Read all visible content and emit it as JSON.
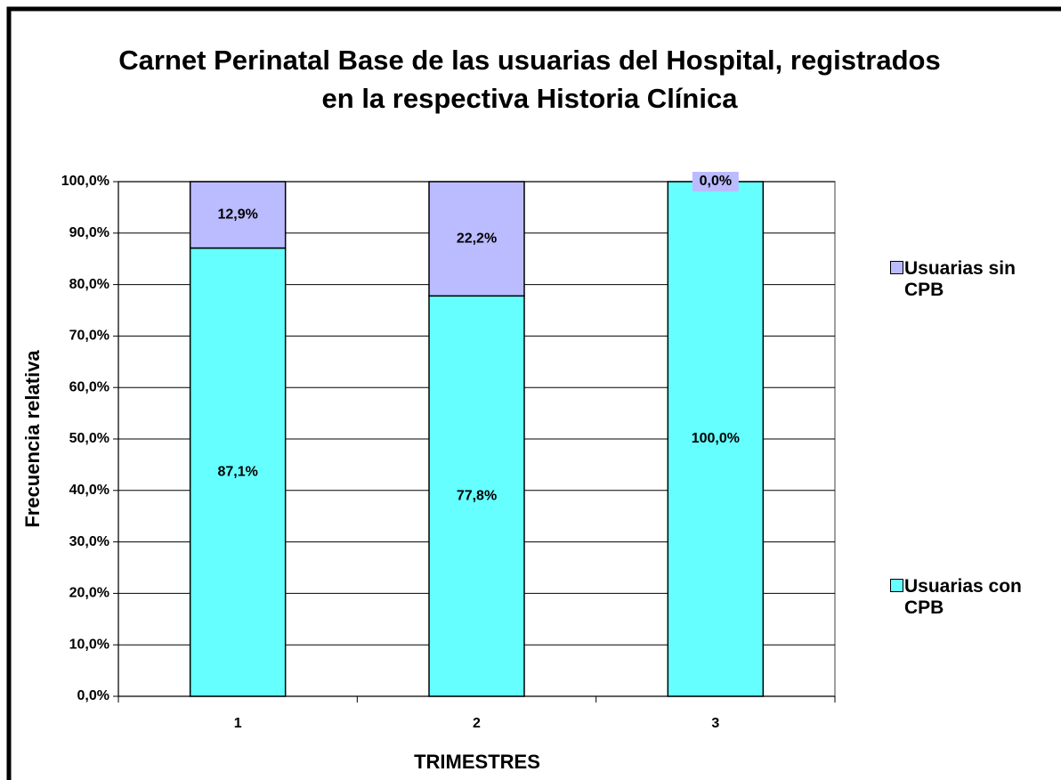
{
  "chart_data": {
    "type": "stacked_bar",
    "title": "Carnet Perinatal Base de las usuarias del Hospital, registrados en la respectiva Historia Clínica",
    "x_label": "TRIMESTRES",
    "y_label": "Frecuencia relativa",
    "categories": [
      "1",
      "2",
      "3"
    ],
    "series": [
      {
        "name": "Usuarias con CPB",
        "color": "#66ffff",
        "values": [
          87.1,
          77.8,
          100
        ],
        "value_labels": [
          "87,1%",
          "77,8%",
          "100,0%"
        ]
      },
      {
        "name": "Usuarias sin CPB",
        "color": "#bbbbff",
        "values": [
          12.9,
          22.2,
          0
        ],
        "value_labels": [
          "12,9%",
          "22,2%",
          "0,0%"
        ]
      }
    ],
    "ylim": [
      0,
      100
    ],
    "yticks": [
      {
        "value": 0,
        "label": "0,0%"
      },
      {
        "value": 10,
        "label": "10,0%"
      },
      {
        "value": 20,
        "label": "20,0%"
      },
      {
        "value": 30,
        "label": "30,0%"
      },
      {
        "value": 40,
        "label": "40,0%"
      },
      {
        "value": 50,
        "label": "50,0%"
      },
      {
        "value": 60,
        "label": "60,0%"
      },
      {
        "value": 70,
        "label": "70,0%"
      },
      {
        "value": 80,
        "label": "80,0%"
      },
      {
        "value": 90,
        "label": "90,0%"
      },
      {
        "value": 100,
        "label": "100,0%"
      }
    ],
    "grid": true,
    "legend_position": "right"
  }
}
